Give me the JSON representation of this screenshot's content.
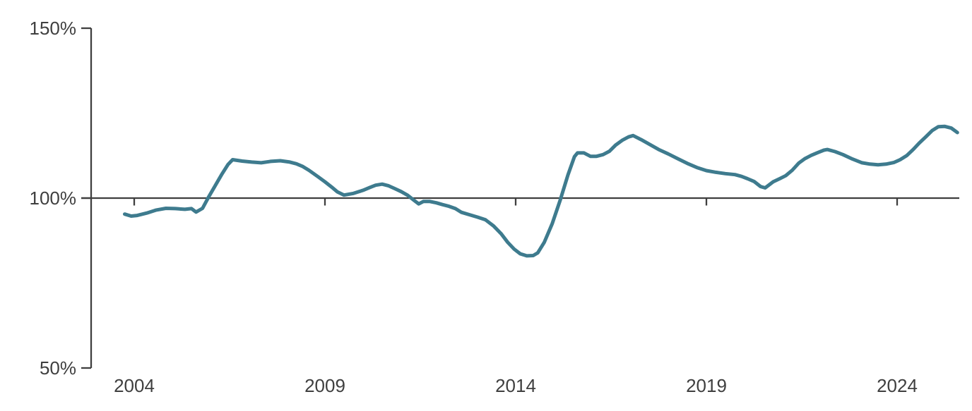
{
  "page": {
    "background": "#ffffff"
  },
  "chart_data": {
    "type": "line",
    "title": "",
    "xlabel": "",
    "ylabel": "",
    "grid": false,
    "legend": "none",
    "background": "#ffffff",
    "axis_color": "#3f3f3f",
    "text_color": "#3f3f3f",
    "line_color": "#3e7b8e",
    "line_width": 5,
    "ylim": [
      50,
      150
    ],
    "xlim": [
      2003.6,
      2025.8
    ],
    "baseline_value": 100,
    "y_ticks": [
      {
        "value": 150,
        "label": "150%"
      },
      {
        "value": 100,
        "label": "100%"
      },
      {
        "value": 50,
        "label": "50%"
      }
    ],
    "x_ticks": [
      {
        "value": 2004,
        "label": "2004"
      },
      {
        "value": 2009,
        "label": "2009"
      },
      {
        "value": 2014,
        "label": "2014"
      },
      {
        "value": 2019,
        "label": "2019"
      },
      {
        "value": 2024,
        "label": "2024"
      }
    ],
    "series": [
      {
        "name": "index-vs-100pct-baseline",
        "color": "#3e7b8e",
        "points": [
          [
            2003.75,
            95.3
          ],
          [
            2003.92,
            94.7
          ],
          [
            2004.08,
            94.9
          ],
          [
            2004.33,
            95.6
          ],
          [
            2004.58,
            96.5
          ],
          [
            2004.83,
            97.0
          ],
          [
            2005.08,
            96.9
          ],
          [
            2005.33,
            96.7
          ],
          [
            2005.5,
            96.9
          ],
          [
            2005.62,
            95.9
          ],
          [
            2005.79,
            97.0
          ],
          [
            2005.96,
            100.5
          ],
          [
            2006.12,
            103.6
          ],
          [
            2006.29,
            106.9
          ],
          [
            2006.46,
            109.9
          ],
          [
            2006.58,
            111.3
          ],
          [
            2006.83,
            110.9
          ],
          [
            2007.08,
            110.6
          ],
          [
            2007.33,
            110.4
          ],
          [
            2007.58,
            110.8
          ],
          [
            2007.83,
            111.0
          ],
          [
            2008.08,
            110.6
          ],
          [
            2008.25,
            110.1
          ],
          [
            2008.42,
            109.3
          ],
          [
            2008.58,
            108.2
          ],
          [
            2008.83,
            106.2
          ],
          [
            2009.0,
            104.8
          ],
          [
            2009.17,
            103.3
          ],
          [
            2009.33,
            101.8
          ],
          [
            2009.5,
            100.9
          ],
          [
            2009.75,
            101.4
          ],
          [
            2010.0,
            102.3
          ],
          [
            2010.17,
            103.1
          ],
          [
            2010.33,
            103.8
          ],
          [
            2010.5,
            104.1
          ],
          [
            2010.67,
            103.6
          ],
          [
            2010.83,
            102.8
          ],
          [
            2011.0,
            101.9
          ],
          [
            2011.17,
            100.8
          ],
          [
            2011.33,
            99.4
          ],
          [
            2011.46,
            98.3
          ],
          [
            2011.58,
            99.0
          ],
          [
            2011.75,
            99.0
          ],
          [
            2011.92,
            98.6
          ],
          [
            2012.08,
            98.1
          ],
          [
            2012.25,
            97.6
          ],
          [
            2012.42,
            96.9
          ],
          [
            2012.58,
            95.8
          ],
          [
            2012.79,
            95.1
          ],
          [
            2013.0,
            94.4
          ],
          [
            2013.21,
            93.6
          ],
          [
            2013.42,
            91.8
          ],
          [
            2013.62,
            89.5
          ],
          [
            2013.79,
            87.0
          ],
          [
            2013.96,
            85.0
          ],
          [
            2014.12,
            83.6
          ],
          [
            2014.29,
            83.0
          ],
          [
            2014.46,
            83.1
          ],
          [
            2014.58,
            83.9
          ],
          [
            2014.75,
            87.0
          ],
          [
            2014.96,
            92.5
          ],
          [
            2015.17,
            99.5
          ],
          [
            2015.37,
            106.8
          ],
          [
            2015.54,
            112.2
          ],
          [
            2015.62,
            113.3
          ],
          [
            2015.79,
            113.3
          ],
          [
            2015.96,
            112.3
          ],
          [
            2016.12,
            112.3
          ],
          [
            2016.29,
            112.8
          ],
          [
            2016.46,
            113.8
          ],
          [
            2016.62,
            115.6
          ],
          [
            2016.79,
            117.0
          ],
          [
            2016.96,
            118.0
          ],
          [
            2017.08,
            118.4
          ],
          [
            2017.29,
            117.2
          ],
          [
            2017.5,
            115.9
          ],
          [
            2017.75,
            114.3
          ],
          [
            2018.0,
            113.0
          ],
          [
            2018.25,
            111.6
          ],
          [
            2018.5,
            110.2
          ],
          [
            2018.75,
            109.0
          ],
          [
            2019.0,
            108.1
          ],
          [
            2019.25,
            107.6
          ],
          [
            2019.5,
            107.2
          ],
          [
            2019.75,
            106.9
          ],
          [
            2019.92,
            106.4
          ],
          [
            2020.08,
            105.7
          ],
          [
            2020.25,
            104.9
          ],
          [
            2020.42,
            103.4
          ],
          [
            2020.54,
            103.0
          ],
          [
            2020.75,
            104.8
          ],
          [
            2020.92,
            105.7
          ],
          [
            2021.08,
            106.6
          ],
          [
            2021.25,
            108.2
          ],
          [
            2021.42,
            110.3
          ],
          [
            2021.58,
            111.6
          ],
          [
            2021.75,
            112.6
          ],
          [
            2021.92,
            113.4
          ],
          [
            2022.08,
            114.1
          ],
          [
            2022.17,
            114.3
          ],
          [
            2022.37,
            113.7
          ],
          [
            2022.58,
            112.8
          ],
          [
            2022.83,
            111.5
          ],
          [
            2023.08,
            110.4
          ],
          [
            2023.29,
            110.0
          ],
          [
            2023.5,
            109.8
          ],
          [
            2023.71,
            110.0
          ],
          [
            2023.92,
            110.5
          ],
          [
            2024.08,
            111.3
          ],
          [
            2024.25,
            112.5
          ],
          [
            2024.42,
            114.3
          ],
          [
            2024.58,
            116.2
          ],
          [
            2024.75,
            118.0
          ],
          [
            2024.92,
            119.9
          ],
          [
            2025.08,
            121.0
          ],
          [
            2025.25,
            121.1
          ],
          [
            2025.42,
            120.6
          ],
          [
            2025.58,
            119.3
          ]
        ]
      }
    ]
  }
}
